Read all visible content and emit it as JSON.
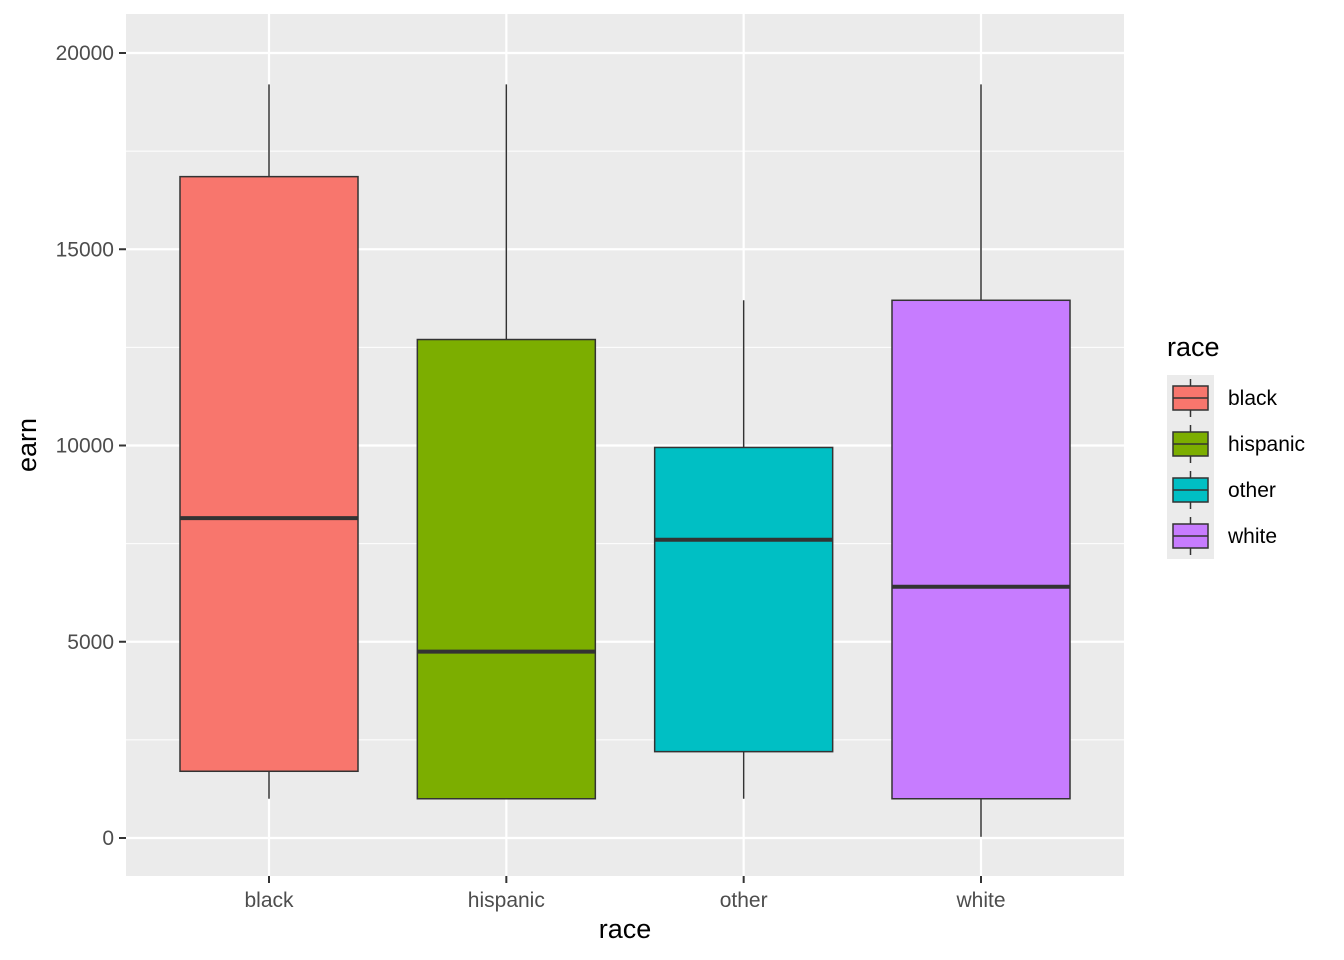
{
  "chart_data": {
    "type": "boxplot",
    "title": "",
    "xlabel": "race",
    "ylabel": "earn",
    "ylim": [
      -1000,
      21000
    ],
    "yticks": [
      0,
      5000,
      10000,
      15000,
      20000
    ],
    "ytick_labels": [
      "0",
      "5000",
      "10000",
      "15000",
      "20000"
    ],
    "grid": true,
    "legend": {
      "title": "race",
      "position": "right"
    },
    "categories": [
      "black",
      "hispanic",
      "other",
      "white"
    ],
    "boxes": [
      {
        "category": "black",
        "color": "#F8766D",
        "whisker_low": 1000,
        "q1": 1700,
        "median": 8150,
        "q3": 16850,
        "whisker_high": 19200
      },
      {
        "category": "hispanic",
        "color": "#7CAE00",
        "whisker_low": 1000,
        "q1": 1000,
        "median": 4750,
        "q3": 12700,
        "whisker_high": 19200
      },
      {
        "category": "other",
        "color": "#00BFC4",
        "whisker_low": 1000,
        "q1": 2200,
        "median": 7600,
        "q3": 9950,
        "whisker_high": 13700
      },
      {
        "category": "white",
        "color": "#C77CFF",
        "whisker_low": 30,
        "q1": 1000,
        "median": 6400,
        "q3": 13700,
        "whisker_high": 19200
      }
    ]
  }
}
